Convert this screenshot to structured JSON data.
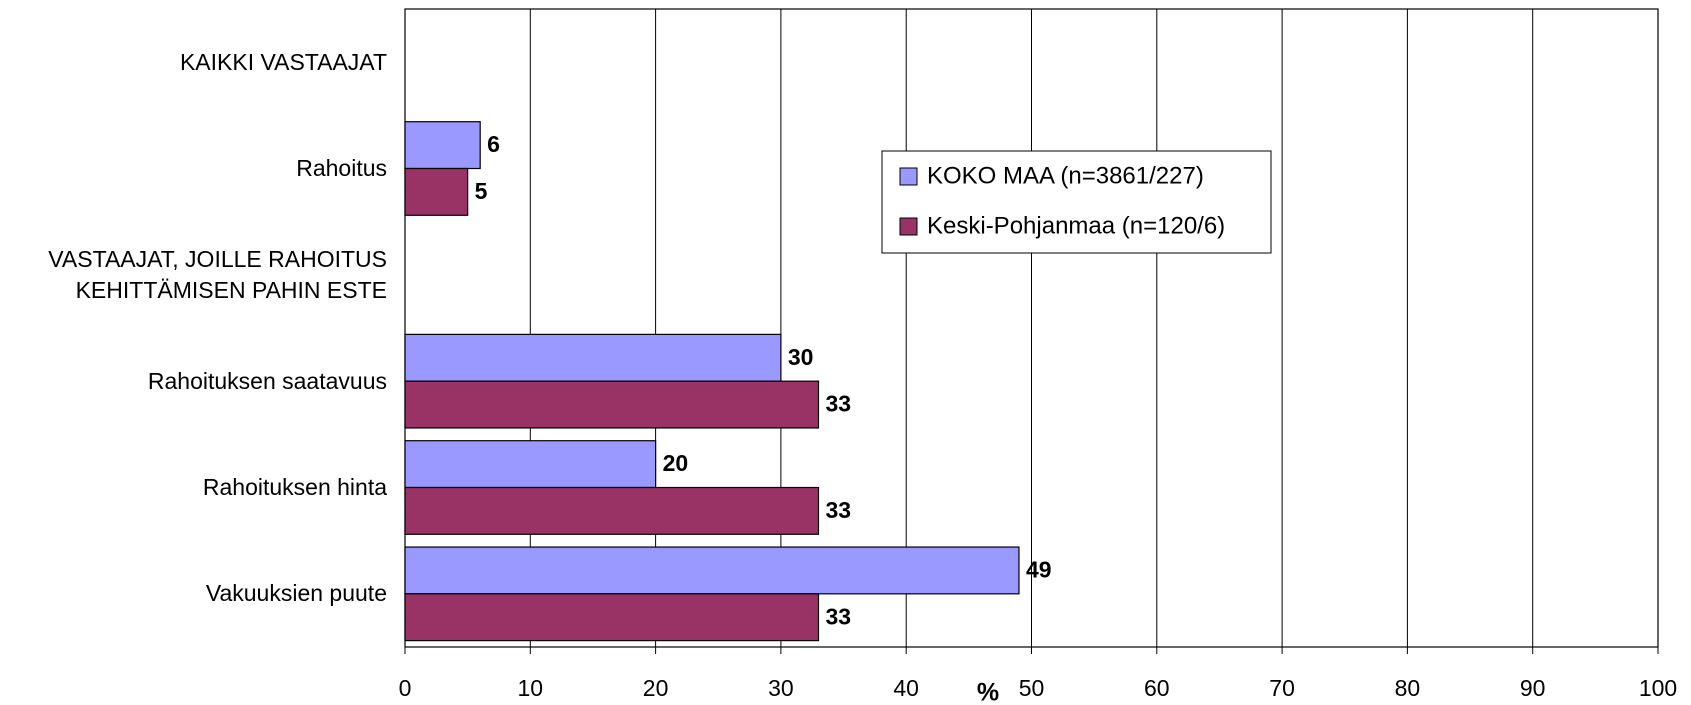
{
  "chart_data": {
    "type": "hbar",
    "categories": [
      "KAIKKI VASTAAJAT",
      "Rahoitus",
      "VASTAAJAT, JOILLE RAHOITUS KEHITTÄMISEN PAHIN ESTE",
      "Rahoituksen saatavuus",
      "Rahoituksen hinta",
      "Vakuuksien puute"
    ],
    "series": [
      {
        "name": "KOKO MAA (n=3861/227)",
        "color": "#9999ff",
        "values": [
          null,
          6,
          null,
          30,
          20,
          49
        ]
      },
      {
        "name": "Keski-Pohjanmaa (n=120/6)",
        "color": "#993366",
        "values": [
          null,
          5,
          null,
          33,
          33,
          33
        ]
      }
    ],
    "xlabel": "%",
    "xlim": [
      0,
      100
    ],
    "xticks": [
      0,
      10,
      20,
      30,
      40,
      50,
      60,
      70,
      80,
      90,
      100
    ],
    "grid": true,
    "legend": "center"
  }
}
